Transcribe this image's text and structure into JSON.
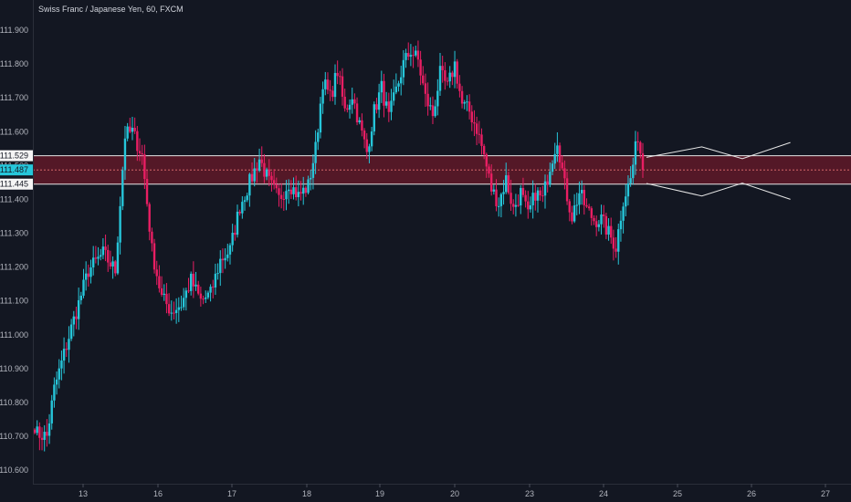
{
  "chart_data": {
    "type": "candlestick",
    "title": "Swiss Franc / Japanese Yen, 60, FXCM",
    "ylim": [
      110.56,
      111.935
    ],
    "y_ticks": [
      "111.900",
      "111.800",
      "111.700",
      "111.600",
      "111.500",
      "111.400",
      "111.300",
      "111.200",
      "111.100",
      "111.000",
      "110.900",
      "110.800",
      "110.700",
      "110.600"
    ],
    "x_ticks": [
      "13",
      "16",
      "17",
      "18",
      "19",
      "20",
      "23",
      "24",
      "25",
      "26",
      "27"
    ],
    "grid": false,
    "colors": {
      "up": "#26c6da",
      "down": "#e91e63",
      "background": "#131722",
      "text": "#b2b5be",
      "zone": "#8b1a2b",
      "price_tag": "#26c6da"
    },
    "zone": {
      "upper": 111.529,
      "lower": 111.445,
      "mid": 111.487
    },
    "price_labels": {
      "upper": "111.529",
      "current": "111.487",
      "lower": "111.445"
    },
    "projection": {
      "upper_path": [
        [
          0,
          111.524
        ],
        [
          0.3,
          111.555
        ],
        [
          0.52,
          111.52
        ],
        [
          0.78,
          111.568
        ]
      ],
      "lower_path": [
        [
          0,
          111.447
        ],
        [
          0.3,
          111.41
        ],
        [
          0.52,
          111.448
        ],
        [
          0.78,
          111.4
        ]
      ]
    },
    "waypoints": [
      [
        0,
        110.71
      ],
      [
        5,
        110.7
      ],
      [
        8,
        110.84
      ],
      [
        15,
        111.02
      ],
      [
        22,
        111.19
      ],
      [
        28,
        111.24
      ],
      [
        33,
        111.19
      ],
      [
        37,
        111.59
      ],
      [
        40,
        111.6
      ],
      [
        44,
        111.53
      ],
      [
        48,
        111.25
      ],
      [
        52,
        111.11
      ],
      [
        56,
        111.07
      ],
      [
        60,
        111.09
      ],
      [
        64,
        111.16
      ],
      [
        68,
        111.1
      ],
      [
        72,
        111.12
      ],
      [
        76,
        111.22
      ],
      [
        80,
        111.25
      ],
      [
        84,
        111.38
      ],
      [
        88,
        111.45
      ],
      [
        92,
        111.52
      ],
      [
        96,
        111.45
      ],
      [
        100,
        111.4
      ],
      [
        104,
        111.45
      ],
      [
        108,
        111.41
      ],
      [
        112,
        111.44
      ],
      [
        115,
        111.55
      ],
      [
        118,
        111.75
      ],
      [
        121,
        111.7
      ],
      [
        124,
        111.78
      ],
      [
        127,
        111.66
      ],
      [
        130,
        111.71
      ],
      [
        133,
        111.62
      ],
      [
        136,
        111.54
      ],
      [
        139,
        111.66
      ],
      [
        142,
        111.73
      ],
      [
        145,
        111.64
      ],
      [
        148,
        111.72
      ],
      [
        151,
        111.8
      ],
      [
        154,
        111.84
      ],
      [
        157,
        111.81
      ],
      [
        160,
        111.7
      ],
      [
        163,
        111.65
      ],
      [
        166,
        111.77
      ],
      [
        169,
        111.73
      ],
      [
        172,
        111.8
      ],
      [
        175,
        111.68
      ],
      [
        178,
        111.66
      ],
      [
        181,
        111.61
      ],
      [
        184,
        111.53
      ],
      [
        187,
        111.43
      ],
      [
        190,
        111.39
      ],
      [
        193,
        111.46
      ],
      [
        196,
        111.37
      ],
      [
        199,
        111.42
      ],
      [
        202,
        111.35
      ],
      [
        205,
        111.42
      ],
      [
        208,
        111.4
      ],
      [
        211,
        111.5
      ],
      [
        214,
        111.58
      ],
      [
        217,
        111.44
      ],
      [
        220,
        111.35
      ],
      [
        223,
        111.42
      ],
      [
        226,
        111.37
      ],
      [
        229,
        111.34
      ],
      [
        232,
        111.34
      ],
      [
        235,
        111.3
      ],
      [
        238,
        111.26
      ],
      [
        241,
        111.4
      ],
      [
        244,
        111.46
      ],
      [
        247,
        111.59
      ],
      [
        249,
        111.49
      ]
    ]
  }
}
